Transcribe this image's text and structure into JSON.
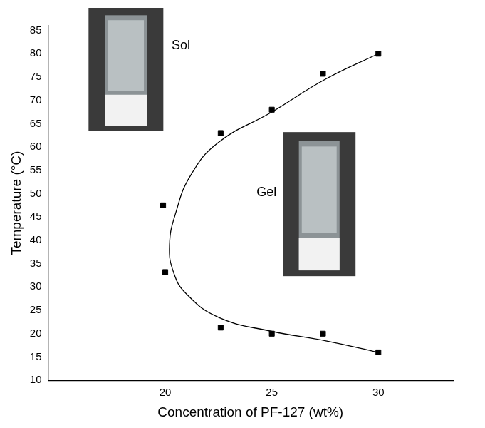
{
  "chart_data": {
    "type": "scatter",
    "x_label": "Concentration of PF-127 (wt%)",
    "y_label": "Temperature (°C)",
    "annotations": [
      "Sol",
      "Gel"
    ],
    "series": [
      {
        "type": "scatter",
        "marker": "square",
        "color": "#000000",
        "x": [
          19.9,
          20.0,
          22.6,
          22.6,
          25.0,
          25.0,
          27.4,
          27.4,
          30.0,
          30.0
        ],
        "values": [
          47.5,
          33.2,
          63.0,
          21.3,
          68.0,
          20.0,
          75.7,
          20.0,
          80.0,
          16.0
        ]
      },
      {
        "type": "line",
        "line_style": "solid",
        "color": "#000000",
        "x": [
          30.0,
          27.5,
          25.0,
          22.5,
          21.2,
          20.5,
          20.2,
          20.4,
          21.0,
          22.5,
          25.0,
          27.5,
          30.0
        ],
        "values": [
          80.0,
          74.5,
          67.5,
          61.0,
          54.0,
          46.0,
          39.0,
          33.0,
          28.5,
          23.5,
          20.5,
          18.5,
          16.0
        ]
      }
    ],
    "xlim": [
      14.5,
      33.5
    ],
    "xticks": [
      20,
      25,
      30
    ],
    "ylim": [
      10,
      86
    ],
    "yticks": [
      10,
      15,
      20,
      25,
      30,
      35,
      40,
      45,
      50,
      55,
      60,
      65,
      70,
      75,
      80,
      85
    ],
    "grid": false
  }
}
